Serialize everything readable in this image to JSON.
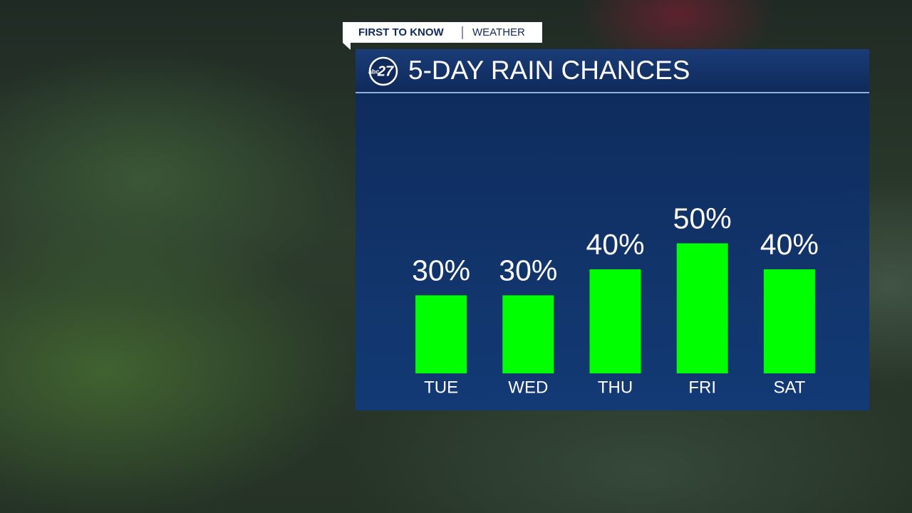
{
  "header": {
    "tag": "FIRST TO KNOW",
    "section": "WEATHER",
    "logo_network": "abc",
    "logo_number": "27"
  },
  "chart_data": {
    "type": "bar",
    "title": "5-DAY RAIN CHANCES",
    "categories": [
      "TUE",
      "WED",
      "THU",
      "FRI",
      "SAT"
    ],
    "values": [
      30,
      30,
      40,
      50,
      40
    ],
    "value_labels": [
      "30%",
      "30%",
      "40%",
      "50%",
      "40%"
    ],
    "color": "#00ff00",
    "ylim": [
      0,
      100
    ]
  }
}
